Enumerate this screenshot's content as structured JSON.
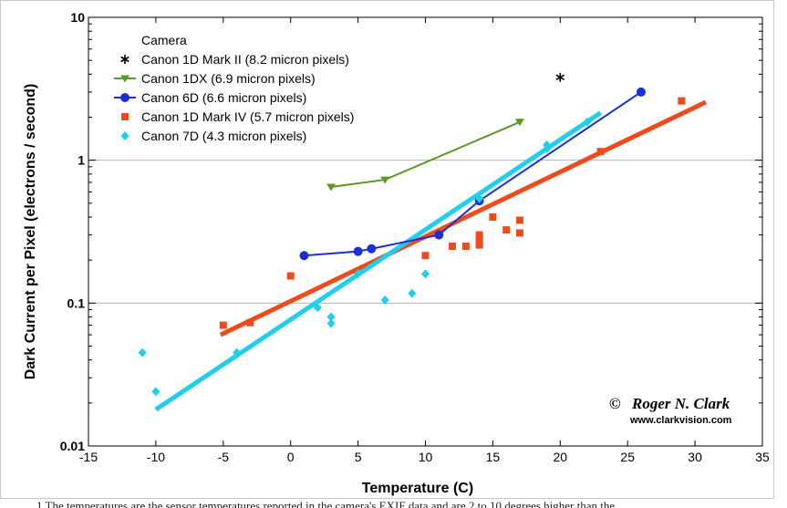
{
  "chart_data": {
    "type": "scatter",
    "title": "",
    "xlabel": "Temperature (C)",
    "ylabel": "Dark Current per Pixel (electrons / second)",
    "xlim": [
      -15,
      35
    ],
    "ylim": [
      0.01,
      10
    ],
    "yscale": "log",
    "x_ticks": [
      -15,
      -10,
      -5,
      0,
      5,
      10,
      15,
      20,
      25,
      30,
      35
    ],
    "y_ticks": [
      {
        "value": 0.01,
        "label": "0.01"
      },
      {
        "value": 0.1,
        "label": "0.1"
      },
      {
        "value": 1,
        "label": "1"
      },
      {
        "value": 10,
        "label": "10"
      }
    ],
    "grid": "horizontal",
    "legend_title": "Camera",
    "legend_position": "top-left",
    "series": [
      {
        "name": "Canon 1D Mark II (8.2 micron pixels)",
        "color": "#000000",
        "marker": "star",
        "points": [
          [
            20,
            3.8
          ]
        ]
      },
      {
        "name": "Canon 1DX (6.9 micron pixels)",
        "color": "#5a9a23",
        "marker": "triangle-down",
        "line": true,
        "points": [
          [
            3,
            0.65
          ],
          [
            7,
            0.73
          ],
          [
            17,
            1.85
          ]
        ]
      },
      {
        "name": "Canon 6D (6.6 micron pixels)",
        "color": "#1c2fd4",
        "marker": "circle",
        "line": true,
        "points": [
          [
            1,
            0.215
          ],
          [
            5,
            0.23
          ],
          [
            6,
            0.24
          ],
          [
            11,
            0.3
          ],
          [
            14,
            0.52
          ],
          [
            26,
            3.0
          ]
        ]
      },
      {
        "name": "Canon 1D Mark IV (5.7 micron pixels)",
        "color": "#ee4a1c",
        "marker": "square",
        "points": [
          [
            -5,
            0.07
          ],
          [
            -3,
            0.073
          ],
          [
            0,
            0.155
          ],
          [
            10,
            0.215
          ],
          [
            12,
            0.25
          ],
          [
            13,
            0.25
          ],
          [
            14,
            0.255
          ],
          [
            14,
            0.27
          ],
          [
            14,
            0.3
          ],
          [
            15,
            0.4
          ],
          [
            16,
            0.325
          ],
          [
            17,
            0.31
          ],
          [
            17,
            0.38
          ],
          [
            23,
            1.15
          ],
          [
            29,
            2.6
          ]
        ],
        "fit": {
          "from": [
            -5.2,
            0.06
          ],
          "to": [
            30.8,
            2.55
          ]
        }
      },
      {
        "name": "Canon 7D (4.3 micron pixels)",
        "color": "#1ed0ec",
        "marker": "diamond",
        "points": [
          [
            -11,
            0.045
          ],
          [
            -10,
            0.024
          ],
          [
            -4,
            0.045
          ],
          [
            2,
            0.093
          ],
          [
            3,
            0.08
          ],
          [
            3,
            0.072
          ],
          [
            5,
            0.16
          ],
          [
            7,
            0.105
          ],
          [
            9,
            0.117
          ],
          [
            10,
            0.16
          ],
          [
            14,
            0.54
          ],
          [
            19,
            1.28
          ],
          [
            19,
            1.2
          ],
          [
            22,
            1.85
          ]
        ],
        "fit": {
          "from": [
            -10,
            0.018
          ],
          "to": [
            23,
            2.15
          ]
        }
      }
    ]
  },
  "credit": {
    "symbol": "©",
    "author": "Roger N. Clark",
    "website": "www.clarkvision.com"
  },
  "caption_fragment": "1 The temperatures are the sensor temperatures reported in the camera's EXIF data and are 2 to 10 degrees higher than the"
}
